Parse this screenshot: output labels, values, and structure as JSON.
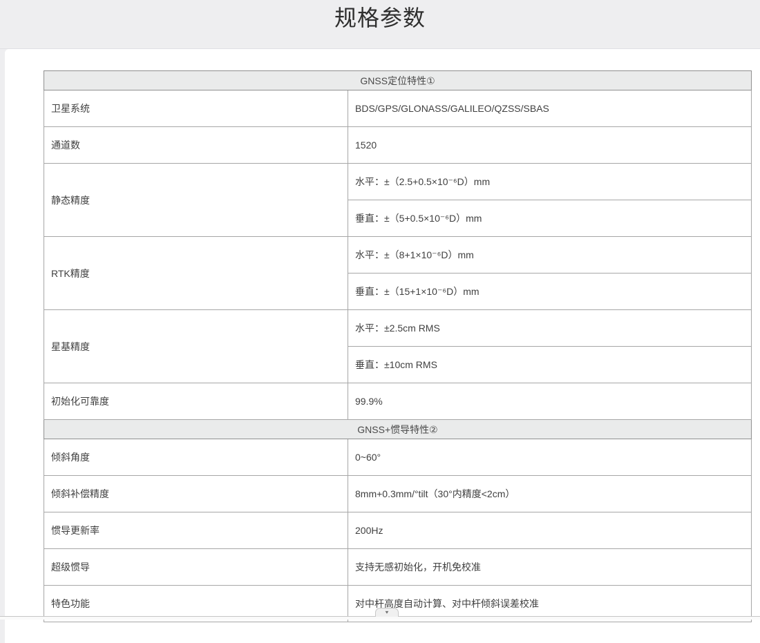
{
  "page": {
    "title": "规格参数"
  },
  "expander": {
    "arrow": "▼"
  },
  "table": {
    "sections": [
      {
        "header": "GNSS定位特性①",
        "rows": [
          {
            "label": "卫星系统",
            "values": [
              "BDS/GPS/GLONASS/GALILEO/QZSS/SBAS"
            ]
          },
          {
            "label": "通道数",
            "values": [
              "1520"
            ]
          },
          {
            "label": "静态精度",
            "values": [
              "水平：±（2.5+0.5×10⁻⁶D）mm",
              "垂直：±（5+0.5×10⁻⁶D）mm"
            ]
          },
          {
            "label": "RTK精度",
            "values": [
              "水平：±（8+1×10⁻⁶D）mm",
              "垂直：±（15+1×10⁻⁶D）mm"
            ]
          },
          {
            "label": "星基精度",
            "values": [
              "水平：±2.5cm RMS",
              "垂直：±10cm RMS"
            ]
          },
          {
            "label": "初始化可靠度",
            "values": [
              "99.9%"
            ]
          }
        ]
      },
      {
        "header": "GNSS+惯导特性②",
        "rows": [
          {
            "label": "倾斜角度",
            "values": [
              "0~60°"
            ]
          },
          {
            "label": "倾斜补偿精度",
            "values": [
              "8mm+0.3mm/°tilt（30°内精度<2cm）"
            ]
          },
          {
            "label": "惯导更新率",
            "values": [
              "200Hz"
            ]
          },
          {
            "label": "超级惯导",
            "values": [
              "支持无感初始化，开机免校准"
            ]
          },
          {
            "label": "特色功能",
            "values": [
              "对中杆高度自动计算、对中杆倾斜误差校准"
            ]
          }
        ]
      }
    ]
  },
  "colors": {
    "page_bg": "#eeeef0",
    "panel_bg": "#ffffff",
    "section_header_bg": "#eaebeb",
    "table_border": "#8f8f8f",
    "cell_border": "#a6a6a6",
    "text": "#404040",
    "title_text": "#2e2e2e"
  }
}
